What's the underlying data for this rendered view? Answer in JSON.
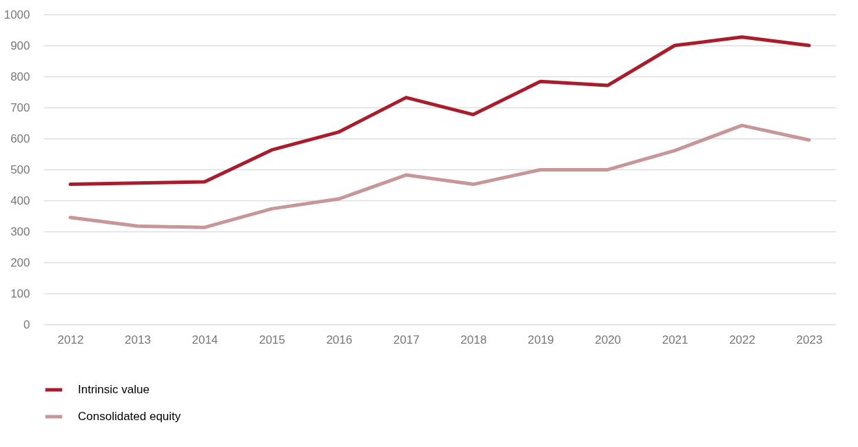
{
  "chart_data": {
    "type": "line",
    "categories": [
      "2012",
      "2013",
      "2014",
      "2015",
      "2016",
      "2017",
      "2018",
      "2019",
      "2020",
      "2021",
      "2022",
      "2023"
    ],
    "series": [
      {
        "name": "Intrinsic value",
        "color": "#a81c2c",
        "values": [
          452,
          456,
          460,
          563,
          621,
          732,
          677,
          784,
          771,
          900,
          927,
          900
        ]
      },
      {
        "name": "Consolidated equity",
        "color": "#c79699",
        "values": [
          345,
          317,
          313,
          373,
          405,
          482,
          452,
          499,
          499,
          561,
          642,
          595
        ]
      }
    ],
    "ylim": [
      0,
      1000
    ],
    "yticks": [
      0,
      100,
      200,
      300,
      400,
      500,
      600,
      700,
      800,
      900,
      1000
    ],
    "grid": "y",
    "legend": "bottom",
    "marker": "none",
    "line_style": "solid"
  }
}
